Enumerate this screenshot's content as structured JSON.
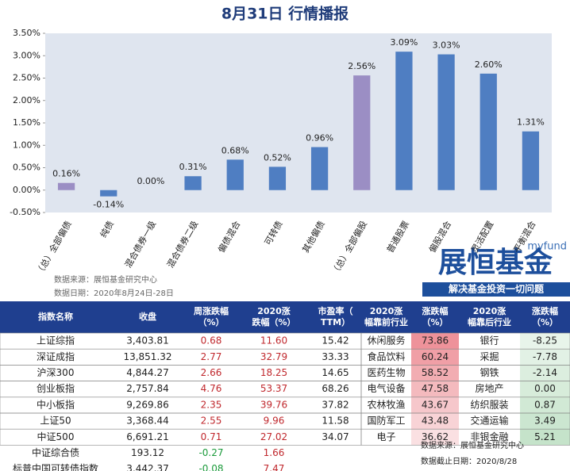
{
  "chart_data": {
    "type": "bar",
    "title": "8月31日  行情播报",
    "categories": [
      "（总）全部偏债",
      "纯债",
      "混合债券一级",
      "混合债券二级",
      "偏债混合",
      "可转债",
      "其他偏债",
      "（总）全部偏股",
      "普通股票",
      "偏股混合",
      "灵活配置",
      "平衡混合"
    ],
    "values": [
      0.16,
      -0.14,
      0.0,
      0.31,
      0.68,
      0.52,
      0.96,
      2.56,
      3.09,
      3.03,
      2.6,
      1.31
    ],
    "value_labels": [
      "0.16%",
      "-0.14%",
      "0.00%",
      "0.31%",
      "0.68%",
      "0.52%",
      "0.96%",
      "2.56%",
      "3.09%",
      "3.03%",
      "2.60%",
      "1.31%"
    ],
    "colors": [
      "#9b8ec4",
      "#4f7ec2",
      "#4f7ec2",
      "#4f7ec2",
      "#4f7ec2",
      "#4f7ec2",
      "#4f7ec2",
      "#9b8ec4",
      "#4f7ec2",
      "#4f7ec2",
      "#4f7ec2",
      "#4f7ec2"
    ],
    "ylim": [
      -0.5,
      3.5
    ],
    "yticks": [
      {
        "value": 3.5,
        "label": "3.50%"
      },
      {
        "value": 3.0,
        "label": "3.00%"
      },
      {
        "value": 2.5,
        "label": "2.50%"
      },
      {
        "value": 2.0,
        "label": "2.00%"
      },
      {
        "value": 1.5,
        "label": "1.50%"
      },
      {
        "value": 1.0,
        "label": "1.00%"
      },
      {
        "value": 0.5,
        "label": "0.50%"
      },
      {
        "value": 0,
        "label": "0.00%"
      },
      {
        "value": -0.5,
        "label": "-0.50%"
      }
    ],
    "grid": false
  },
  "chart_notes": {
    "source": "数据来源：展恒基金研究中心",
    "date": "数据日期：2020年8月24日-28日"
  },
  "logo": {
    "site": "myfund",
    "brand": "展恒基金",
    "slogan": "解决基金投资一切问题"
  },
  "index_table": {
    "header": [
      "指数名称",
      "收盘",
      "周涨跌幅（%）",
      "2020涨跌幅（%）",
      "市盈率（TTM）"
    ],
    "rows": [
      [
        "上证综指",
        "3,403.81",
        "0.68",
        "11.60",
        "15.42"
      ],
      [
        "深证成指",
        "13,851.32",
        "2.77",
        "32.79",
        "33.33"
      ],
      [
        "沪深300",
        "4,844.27",
        "2.66",
        "18.25",
        "14.65"
      ],
      [
        "创业板指",
        "2,757.84",
        "4.76",
        "53.37",
        "68.26"
      ],
      [
        "中小板指",
        "9,269.86",
        "2.35",
        "39.76",
        "37.82"
      ],
      [
        "上证50",
        "3,368.44",
        "2.55",
        "9.96",
        "11.58"
      ],
      [
        "中证500",
        "6,691.21",
        "0.71",
        "27.02",
        "34.07"
      ],
      [
        "中证综合债",
        "193.12",
        "-0.27",
        "1.66"
      ],
      [
        "标普中国可转债指数",
        "3,442.37",
        "-0.08",
        "7.47"
      ]
    ]
  },
  "industry_table": {
    "header": [
      "2020涨幅靠前行业",
      "涨跌幅（%）",
      "2020涨幅靠后行业",
      "涨跌幅（%）"
    ],
    "rows": [
      [
        "休闲服务",
        "73.86",
        "银行",
        "-8.25"
      ],
      [
        "食品饮料",
        "60.24",
        "采掘",
        "-7.78"
      ],
      [
        "医药生物",
        "58.52",
        "钢铁",
        "-2.14"
      ],
      [
        "电气设备",
        "47.58",
        "房地产",
        "0.00"
      ],
      [
        "农林牧渔",
        "43.67",
        "纺织服装",
        "0.87"
      ],
      [
        "国防军工",
        "43.48",
        "交通运输",
        "3.49"
      ],
      [
        "电子",
        "36.62",
        "非银金融",
        "5.21"
      ]
    ]
  },
  "footer": {
    "source": "数据来源：展恒基金研究中心",
    "date": "数据截止日期：2020/8/28"
  }
}
